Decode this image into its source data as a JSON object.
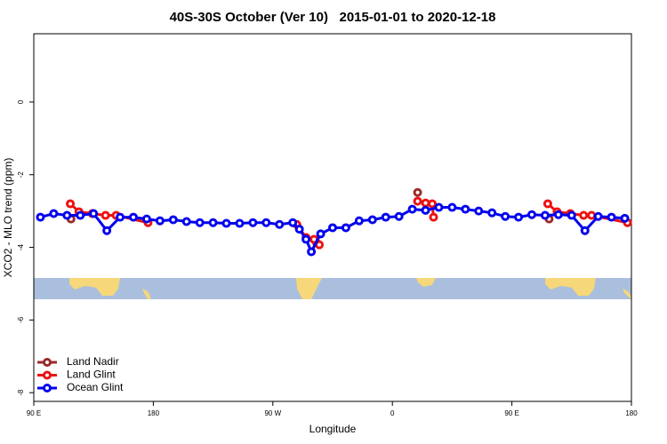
{
  "chart_data": {
    "type": "line",
    "title": "40S-30S October (Ver 10)   2015-01-01 to 2020-12-18",
    "x_label": "Longitude",
    "y_label": "XCO2 - MLO trend (ppm)",
    "xlim": [
      90,
      540
    ],
    "ylim": [
      -8.24,
      1.88
    ],
    "xticks": [
      {
        "value": 90,
        "label": "90 E"
      },
      180,
      {
        "value": 270,
        "label": "90 W"
      },
      {
        "value": 360,
        "label": "0"
      },
      {
        "value": 450,
        "label": "90 E"
      },
      {
        "value": 540,
        "label": "180"
      }
    ],
    "yticks": [
      0,
      -2,
      -4,
      -6,
      -8
    ],
    "legend": "bottom-left",
    "series": [
      {
        "name": "Land Nadir",
        "color": "#9b2a2a",
        "x": [
          118,
          null,
          303,
          null,
          379,
          null,
          478
        ],
        "values": [
          -3.22,
          null,
          -3.88,
          null,
          -2.49,
          null,
          -3.22
        ]
      },
      {
        "name": "Land Glint",
        "color": "#ee1111",
        "x": [
          117.5,
          124,
          134,
          144,
          152,
          176,
          null,
          288,
          295,
          301,
          305,
          null,
          379,
          385,
          390,
          391,
          null,
          477,
          484,
          494,
          504,
          510,
          537
        ],
        "values": [
          -2.8,
          -3.02,
          -3.07,
          -3.12,
          -3.12,
          -3.32,
          null,
          -3.37,
          -3.73,
          -3.78,
          -3.93,
          null,
          -2.73,
          -2.78,
          -2.8,
          -3.17,
          null,
          -2.8,
          -3.02,
          -3.07,
          -3.12,
          -3.12,
          -3.32
        ]
      },
      {
        "name": "Ocean Glint",
        "color": "#0000ee",
        "x": [
          95,
          105,
          115,
          125,
          135,
          145,
          155,
          165,
          175,
          185,
          195,
          205,
          215,
          225,
          235,
          245,
          255,
          265,
          275,
          285,
          290,
          295,
          299,
          306,
          315,
          325,
          335,
          345,
          355,
          365,
          375,
          385,
          395,
          405,
          415,
          425,
          435,
          445,
          455,
          465,
          475,
          485,
          495,
          505,
          515,
          525,
          535
        ],
        "values": [
          -3.17,
          -3.07,
          -3.12,
          -3.12,
          -3.07,
          -3.54,
          -3.17,
          -3.17,
          -3.22,
          -3.27,
          -3.24,
          -3.29,
          -3.32,
          -3.32,
          -3.34,
          -3.34,
          -3.32,
          -3.32,
          -3.37,
          -3.32,
          -3.5,
          -3.78,
          -4.12,
          -3.63,
          -3.46,
          -3.46,
          -3.27,
          -3.24,
          -3.17,
          -3.15,
          -2.95,
          -2.98,
          -2.9,
          -2.9,
          -2.95,
          -3.0,
          -3.05,
          -3.15,
          -3.17,
          -3.1,
          -3.12,
          -3.1,
          -3.12,
          -3.54,
          -3.15,
          -3.17,
          -3.2
        ]
      }
    ]
  }
}
